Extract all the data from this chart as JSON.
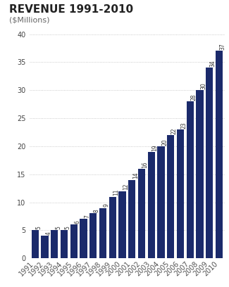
{
  "title": "REVENUE 1991-2010",
  "subtitle": "($Millions)",
  "years": [
    "1991",
    "1992",
    "1993",
    "1994",
    "1995",
    "1996",
    "1997",
    "1998",
    "1999",
    "2000",
    "2001",
    "2002",
    "2003",
    "2004",
    "2005",
    "2006",
    "2007",
    "2008",
    "2009",
    "2010"
  ],
  "values": [
    5,
    4,
    5,
    5,
    6,
    7,
    8,
    9,
    11,
    12,
    14,
    16,
    19,
    20,
    22,
    23,
    28,
    30,
    34,
    37
  ],
  "bar_color": "#1b2a6b",
  "background_color": "#ffffff",
  "yticks": [
    0,
    5,
    10,
    15,
    20,
    25,
    30,
    35,
    40
  ],
  "ylim": [
    0,
    42
  ],
  "grid_color": "#bbbbbb",
  "title_fontsize": 11,
  "subtitle_fontsize": 8,
  "tick_label_fontsize": 7,
  "bar_label_fontsize": 5.5,
  "bar_label_color": "#333333"
}
